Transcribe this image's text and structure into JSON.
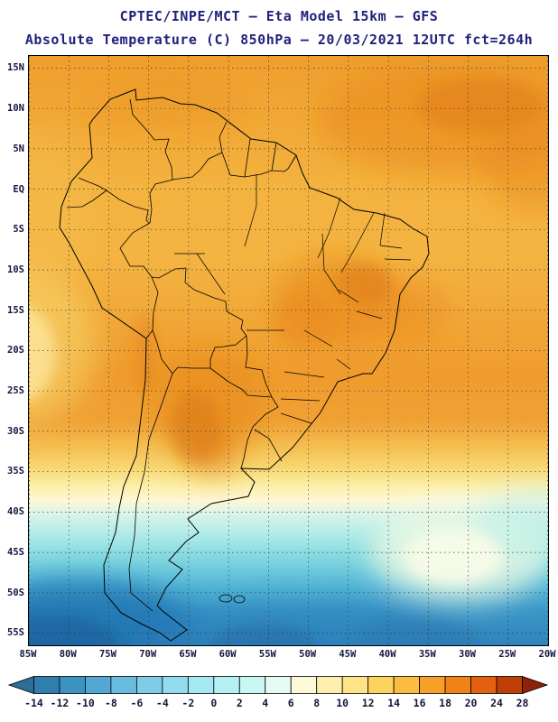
{
  "header": {
    "title_line1": "CPTEC/INPE/MCT –  Eta Model 15km – GFS",
    "title_line2": "Absolute Temperature (C) 850hPa – 20/03/2021 12UTC fct=264h"
  },
  "map": {
    "region": "South America",
    "lat_labels": [
      "15N",
      "10N",
      "5N",
      "EQ",
      "5S",
      "10S",
      "15S",
      "20S",
      "25S",
      "30S",
      "35S",
      "40S",
      "45S",
      "50S",
      "55S"
    ],
    "lon_labels": [
      "85W",
      "80W",
      "75W",
      "70W",
      "65W",
      "60W",
      "55W",
      "50W",
      "45W",
      "40W",
      "35W",
      "30W",
      "25W",
      "20W"
    ]
  },
  "colorbar": {
    "unit": "C",
    "ticks": [
      "-14",
      "-12",
      "-10",
      "-8",
      "-6",
      "-4",
      "-2",
      "0",
      "2",
      "4",
      "6",
      "8",
      "10",
      "12",
      "14",
      "16",
      "18",
      "20",
      "24",
      "28"
    ],
    "colors": [
      "#2e6d96",
      "#2e7eae",
      "#3c93c2",
      "#52a8d2",
      "#68bcde",
      "#7ecce8",
      "#93dbee",
      "#a5e7f2",
      "#b5f0f4",
      "#c9f7f3",
      "#e2fbf3",
      "#fdf8d8",
      "#feefae",
      "#fee387",
      "#fdd35e",
      "#fbbc3f",
      "#f79f27",
      "#f08216",
      "#e3610e",
      "#c03e08",
      "#8f2206"
    ]
  },
  "chart_data": {
    "type": "heatmap",
    "title": "Absolute Temperature (C) at 850hPa",
    "legend_position": "bottom",
    "grid": "dashed 5-degree graticule",
    "x_range_deg_lon": [
      "85W",
      "20W"
    ],
    "y_range_deg_lat": [
      "15N",
      "55S"
    ],
    "approx_zonal_values": [
      {
        "lat_band": "15N-5S (tropics)",
        "temp_C": "16-20"
      },
      {
        "lat_band": "5S-20S (central Brazil warm cores)",
        "temp_C": "18-24"
      },
      {
        "lat_band": "20S-33S (Paraguay / N Argentina warm cores)",
        "temp_C": "18-24"
      },
      {
        "lat_band": "SE Pacific near 85W 15S-25S",
        "temp_C": "10-14"
      },
      {
        "lat_band": "33S-40S (transition band)",
        "temp_C": "6-14"
      },
      {
        "lat_band": "40S-48S (pale patch S Atlantic ~30W 45S)",
        "temp_C": "0-8"
      },
      {
        "lat_band": "48S-57S (deep blue SW Pacific corner)",
        "temp_C": "-10-0"
      }
    ]
  }
}
